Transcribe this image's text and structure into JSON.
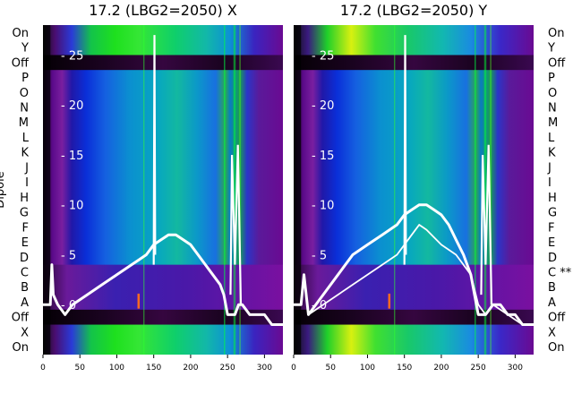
{
  "chart_data": [
    {
      "type": "heatmap",
      "title": "17.2 (LBG2=2050) X",
      "ylabel": "Dipole",
      "row_labels": [
        "On",
        "Y",
        "Off",
        "P",
        "O",
        "N",
        "M",
        "L",
        "K",
        "J",
        "I",
        "H",
        "G",
        "F",
        "E",
        "D",
        "C",
        "B",
        "A",
        "Off",
        "X",
        "On"
      ],
      "x_ticks": [
        0,
        50,
        100,
        150,
        200,
        250,
        300
      ],
      "xlim": [
        0,
        325
      ],
      "overlay_ticks": [
        25,
        20,
        15,
        10,
        5,
        0
      ],
      "overlay_ylim": [
        -5,
        28
      ],
      "overlay_series": [
        {
          "x": [
            0,
            10,
            12,
            14,
            20,
            30,
            40,
            60,
            80,
            100,
            120,
            130,
            140,
            150,
            160,
            170,
            180,
            190,
            200,
            210,
            220,
            230,
            240,
            245,
            250,
            260,
            265,
            270,
            280,
            290,
            300,
            310,
            320,
            325
          ],
          "y": [
            0,
            0,
            4,
            1,
            0,
            -1,
            0,
            1,
            2,
            3,
            4,
            4.5,
            5,
            6,
            6.5,
            7,
            7,
            6.5,
            6,
            5,
            4,
            3,
            2,
            1,
            -1,
            -1,
            0,
            0,
            -1,
            -1,
            -1,
            -2,
            -2,
            -2
          ]
        }
      ]
    },
    {
      "type": "heatmap",
      "title": "17.2 (LBG2=2050) Y",
      "row_labels": [
        "On",
        "Y",
        "Off",
        "P",
        "O",
        "N",
        "M",
        "L",
        "K",
        "J",
        "I",
        "H",
        "G",
        "F",
        "E",
        "D",
        "C **",
        "B",
        "A",
        "Off",
        "X",
        "On"
      ],
      "x_ticks": [
        0,
        50,
        100,
        150,
        200,
        250,
        300
      ],
      "xlim": [
        0,
        325
      ],
      "overlay_ticks": [
        25,
        20,
        15,
        10,
        5,
        0
      ],
      "overlay_ylim": [
        -5,
        28
      ],
      "overlay_series": [
        {
          "x": [
            0,
            10,
            14,
            20,
            40,
            60,
            80,
            100,
            120,
            130,
            140,
            150,
            160,
            170,
            180,
            190,
            200,
            210,
            220,
            230,
            240,
            245,
            250,
            260,
            270,
            280,
            290,
            300,
            310,
            325
          ],
          "y": [
            0,
            0,
            3,
            -1,
            1,
            3,
            5,
            6,
            7,
            7.5,
            8,
            9,
            9.5,
            10,
            10,
            9.5,
            9,
            8,
            6.5,
            5,
            3,
            1,
            -1,
            -1,
            0,
            0,
            -1,
            -1,
            -2,
            -2
          ]
        },
        {
          "x": [
            0,
            10,
            14,
            20,
            40,
            60,
            80,
            100,
            120,
            140,
            160,
            170,
            180,
            200,
            220,
            240,
            250,
            260,
            270,
            290,
            310,
            325
          ],
          "y": [
            0,
            0,
            3,
            -1,
            0,
            1,
            2,
            3,
            4,
            5,
            7,
            8,
            7.5,
            6,
            5,
            3,
            0,
            -1,
            0,
            -1,
            -2,
            -2
          ]
        }
      ]
    }
  ]
}
